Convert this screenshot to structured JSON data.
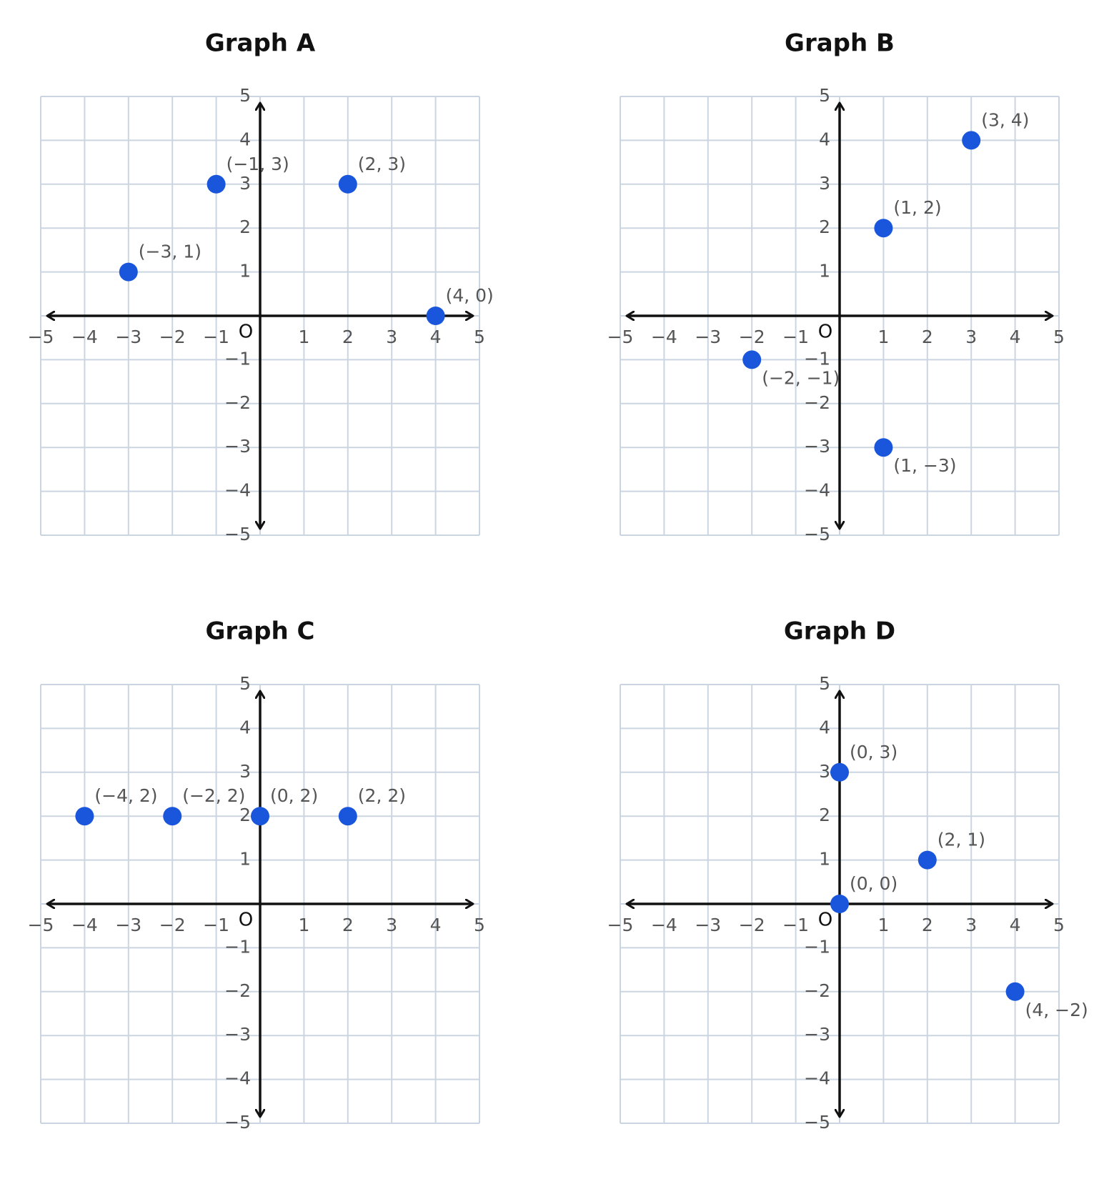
{
  "origin_label": "O",
  "colors": {
    "grid": "#cbd5e1",
    "axis": "#111111",
    "point": "#1a56db",
    "tick_text": "#555555",
    "point_label_text": "#555555",
    "title_text": "#111111"
  },
  "chart_data": [
    {
      "type": "scatter",
      "title": "Graph A",
      "xlim": [
        -5,
        5
      ],
      "ylim": [
        -5,
        5
      ],
      "x_ticks": [
        -5,
        -4,
        -3,
        -2,
        -1,
        1,
        2,
        3,
        4,
        5
      ],
      "y_ticks": [
        5,
        4,
        3,
        2,
        1,
        -1,
        -2,
        -3,
        -4,
        -5
      ],
      "grid": true,
      "points": [
        {
          "x": -3,
          "y": 1,
          "label": "(−3, 1)",
          "label_side": "above"
        },
        {
          "x": -1,
          "y": 3,
          "label": "(−1, 3)",
          "label_side": "above"
        },
        {
          "x": 2,
          "y": 3,
          "label": "(2, 3)",
          "label_side": "above"
        },
        {
          "x": 4,
          "y": 0,
          "label": "(4, 0)",
          "label_side": "above"
        }
      ]
    },
    {
      "type": "scatter",
      "title": "Graph B",
      "xlim": [
        -5,
        5
      ],
      "ylim": [
        -5,
        5
      ],
      "x_ticks": [
        -5,
        -4,
        -3,
        -2,
        -1,
        1,
        2,
        3,
        4,
        5
      ],
      "y_ticks": [
        5,
        4,
        3,
        2,
        1,
        -1,
        -2,
        -3,
        -4,
        -5
      ],
      "grid": true,
      "points": [
        {
          "x": 3,
          "y": 4,
          "label": "(3, 4)",
          "label_side": "above"
        },
        {
          "x": 1,
          "y": 2,
          "label": "(1, 2)",
          "label_side": "above"
        },
        {
          "x": -2,
          "y": -1,
          "label": "(−2, −1)",
          "label_side": "below"
        },
        {
          "x": 1,
          "y": -3,
          "label": "(1, −3)",
          "label_side": "below"
        }
      ]
    },
    {
      "type": "scatter",
      "title": "Graph C",
      "xlim": [
        -5,
        5
      ],
      "ylim": [
        -5,
        5
      ],
      "x_ticks": [
        -5,
        -4,
        -3,
        -2,
        -1,
        1,
        2,
        3,
        4,
        5
      ],
      "y_ticks": [
        5,
        4,
        3,
        2,
        1,
        -1,
        -2,
        -3,
        -4,
        -5
      ],
      "grid": true,
      "points": [
        {
          "x": -4,
          "y": 2,
          "label": "(−4, 2)",
          "label_side": "above"
        },
        {
          "x": -2,
          "y": 2,
          "label": "(−2, 2)",
          "label_side": "above"
        },
        {
          "x": 0,
          "y": 2,
          "label": "(0, 2)",
          "label_side": "above"
        },
        {
          "x": 2,
          "y": 2,
          "label": "(2, 2)",
          "label_side": "above"
        }
      ]
    },
    {
      "type": "scatter",
      "title": "Graph D",
      "xlim": [
        -5,
        5
      ],
      "ylim": [
        -5,
        5
      ],
      "x_ticks": [
        -5,
        -4,
        -3,
        -2,
        -1,
        1,
        2,
        3,
        4,
        5
      ],
      "y_ticks": [
        5,
        4,
        3,
        2,
        1,
        -1,
        -2,
        -3,
        -4,
        -5
      ],
      "grid": true,
      "points": [
        {
          "x": 0,
          "y": 3,
          "label": "(0, 3)",
          "label_side": "above"
        },
        {
          "x": 2,
          "y": 1,
          "label": "(2, 1)",
          "label_side": "above"
        },
        {
          "x": 0,
          "y": 0,
          "label": "(0, 0)",
          "label_side": "above"
        },
        {
          "x": 4,
          "y": -2,
          "label": "(4, −2)",
          "label_side": "below"
        }
      ]
    }
  ]
}
